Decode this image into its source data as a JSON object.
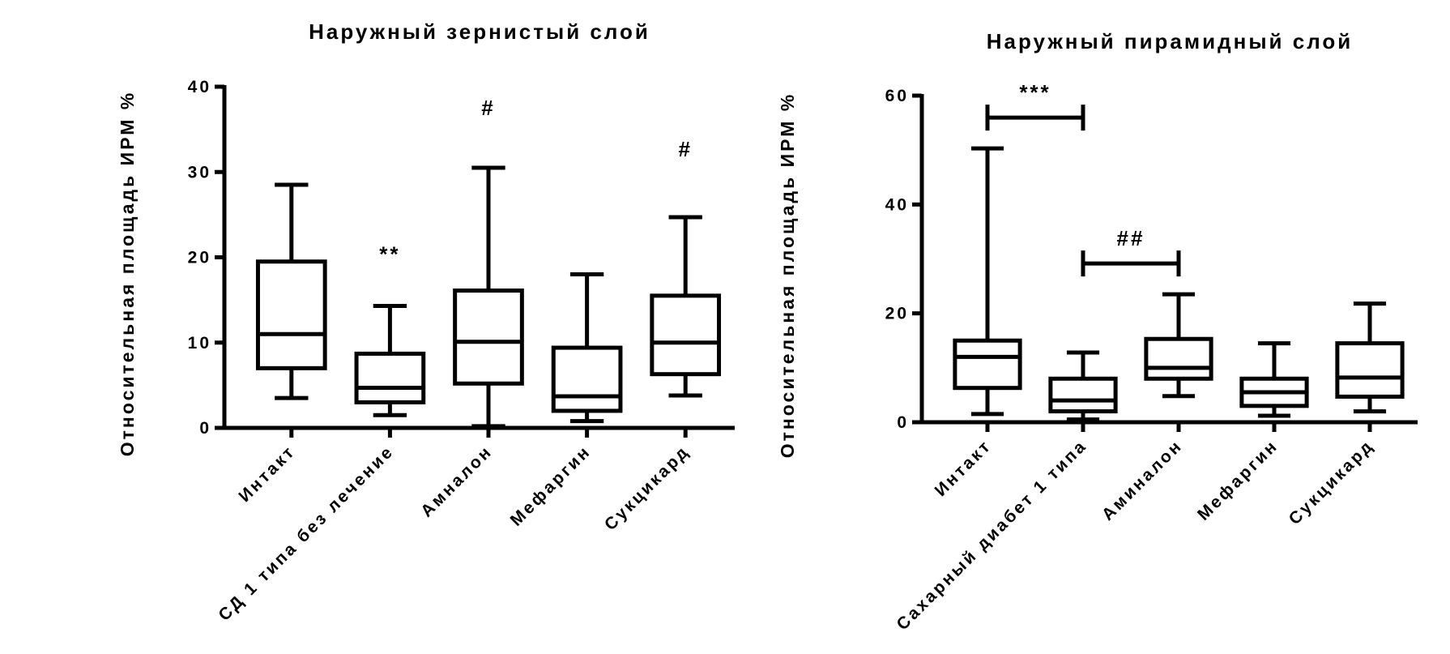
{
  "chart_data": [
    {
      "type": "box",
      "title": "Наружный зернистый слой",
      "ylabel": "Относительная площадь ИРМ %",
      "categories": [
        "Интакт",
        "СД 1 типа без лечение",
        "Амналон",
        "Мефаргин",
        "Сукцикард"
      ],
      "boxes": [
        {
          "min": 3.5,
          "q1": 7,
          "median": 11,
          "q3": 19.5,
          "max": 28.5
        },
        {
          "min": 1.5,
          "q1": 3,
          "median": 4.7,
          "q3": 8.7,
          "max": 14.3
        },
        {
          "min": 0.2,
          "q1": 5.2,
          "median": 10.1,
          "q3": 16.1,
          "max": 30.5
        },
        {
          "min": 0.8,
          "q1": 2,
          "median": 3.7,
          "q3": 9.4,
          "max": 18
        },
        {
          "min": 3.8,
          "q1": 6.3,
          "median": 10,
          "q3": 15.5,
          "max": 24.7
        }
      ],
      "ylim": [
        0,
        40
      ],
      "yticks": [
        0,
        10,
        20,
        30,
        40
      ],
      "color": "#000000",
      "annotations": [
        {
          "text": "**",
          "categories": [
            "СД 1 типа без лечение"
          ]
        },
        {
          "text": "#",
          "categories": [
            "Амналон"
          ]
        },
        {
          "text": "#",
          "categories": [
            "Сукцикард"
          ]
        }
      ]
    },
    {
      "type": "box",
      "title": "Наружный пирамидный слой",
      "ylabel": "Относительная площадь ИРМ %",
      "categories": [
        "Интакт",
        "Сахарный диабет 1 типа",
        "Аминалон",
        "Мефаргин",
        "Сукцикард"
      ],
      "boxes": [
        {
          "min": 1.5,
          "q1": 6.3,
          "median": 12,
          "q3": 15,
          "max": 50.3
        },
        {
          "min": 0.5,
          "q1": 2,
          "median": 4,
          "q3": 8,
          "max": 12.8
        },
        {
          "min": 4.8,
          "q1": 8,
          "median": 10,
          "q3": 15.3,
          "max": 23.5
        },
        {
          "min": 1.2,
          "q1": 3,
          "median": 5.5,
          "q3": 8,
          "max": 14.5
        },
        {
          "min": 2,
          "q1": 4.7,
          "median": 8.2,
          "q3": 14.5,
          "max": 21.8
        }
      ],
      "ylim": [
        0,
        60
      ],
      "yticks": [
        0,
        20,
        40,
        60
      ],
      "color": "#000000",
      "annotations": [
        {
          "text": "***",
          "categories": [
            "Интакт",
            "Сахарный диабет 1 типа"
          ]
        },
        {
          "text": "##",
          "categories": [
            "Сахарный диабет 1 типа",
            "Аминалон"
          ]
        }
      ]
    }
  ]
}
